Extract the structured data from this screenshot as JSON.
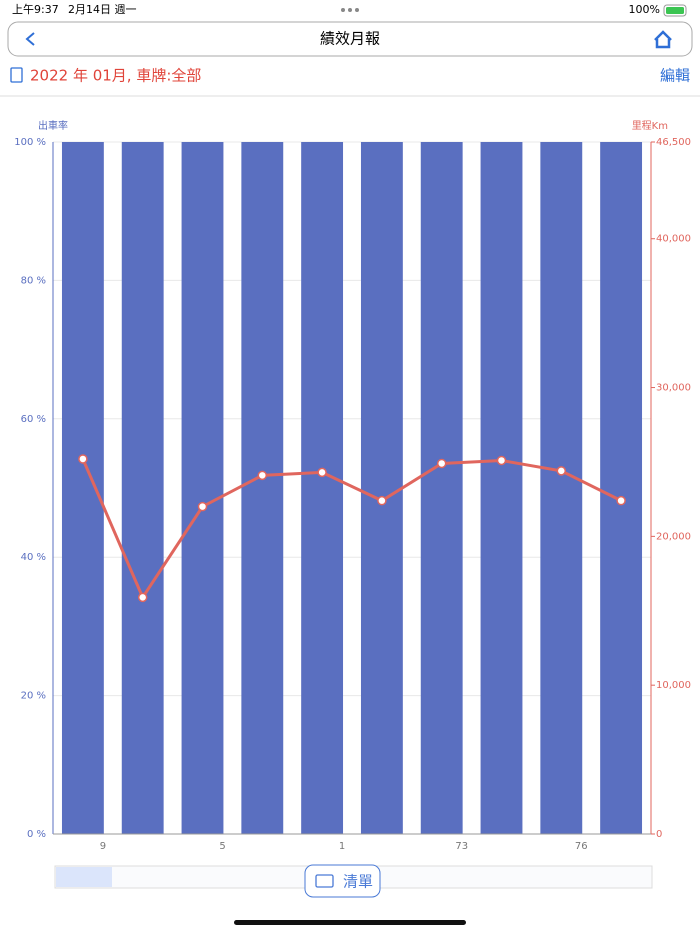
{
  "status_bar": {
    "time": "上午9:37",
    "date": "2月14日 週一",
    "battery": "100%"
  },
  "nav": {
    "title": "績效月報"
  },
  "filter": {
    "text": "2022 年 01月, 車牌:全部",
    "edit": "編輯"
  },
  "list_button": "清單",
  "chart_data": {
    "type": "bar",
    "y_label": "出車率",
    "y2_label": "里程Km",
    "categories": [
      "9",
      null,
      "5",
      null,
      "1",
      null,
      "73",
      null,
      "76",
      null
    ],
    "series": [
      {
        "type": "bar",
        "color": "#5a6fc0",
        "values": [
          100,
          100,
          100,
          100,
          100,
          100,
          100,
          100,
          100,
          100
        ]
      },
      {
        "type": "line",
        "axis": "y2",
        "color": "#e0665e",
        "values": [
          25200,
          15900,
          22000,
          24100,
          24300,
          22400,
          24900,
          25100,
          24400,
          22400
        ]
      }
    ],
    "ylim": [
      0,
      100
    ],
    "yticks": [
      {
        "value": 0,
        "label": "0 %"
      },
      {
        "value": 20,
        "label": "20 %"
      },
      {
        "value": 40,
        "label": "40 %"
      },
      {
        "value": 60,
        "label": "60 %"
      },
      {
        "value": 80,
        "label": "80 %"
      },
      {
        "value": 100,
        "label": "100 %"
      }
    ],
    "y2lim": [
      0,
      46500
    ],
    "y2ticks": [
      0,
      {
        "value": 10000,
        "label": "10,000"
      },
      {
        "value": 20000,
        "label": "20,000"
      },
      {
        "value": 30000,
        "label": "30,000"
      },
      {
        "value": 40000,
        "label": "40,000"
      },
      {
        "value": 46500,
        "label": "46,500"
      }
    ],
    "grid": true
  }
}
